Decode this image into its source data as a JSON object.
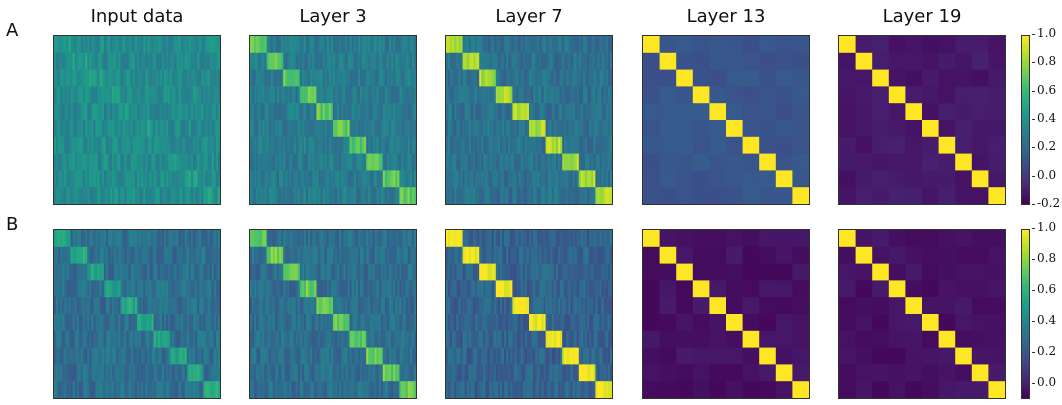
{
  "chart_data": {
    "type": "heatmap",
    "description": "Similarity matrices (10 block clusters) of input data and hidden-layer representations",
    "row_labels": [
      "A",
      "B"
    ],
    "column_titles": [
      "Input data",
      "Layer 3",
      "Layer 7",
      "Layer 13",
      "Layer 19"
    ],
    "colormap": "viridis",
    "n_blocks": 10,
    "rows": [
      {
        "label": "A",
        "colorbar": {
          "min": -0.2,
          "max": 1.0,
          "ticks": [
            "1.0",
            "0.8",
            "0.6",
            "0.4",
            "0.2",
            "0.0",
            "-0.2"
          ]
        },
        "panels": [
          {
            "title": "Input data",
            "diag": 0.45,
            "off": 0.38
          },
          {
            "title": "Layer 3",
            "diag": 0.7,
            "off": 0.3
          },
          {
            "title": "Layer 7",
            "diag": 0.85,
            "off": 0.25
          },
          {
            "title": "Layer 13",
            "diag": 1.0,
            "off": 0.12
          },
          {
            "title": "Layer 19",
            "diag": 1.0,
            "off": -0.12
          }
        ]
      },
      {
        "label": "B",
        "colorbar": {
          "min": -0.1,
          "max": 1.0,
          "ticks": [
            "1.0",
            "0.8",
            "0.6",
            "0.4",
            "0.2",
            "0.0"
          ]
        },
        "panels": [
          {
            "title": "Input data",
            "diag": 0.55,
            "off": 0.3
          },
          {
            "title": "Layer 3",
            "diag": 0.75,
            "off": 0.3
          },
          {
            "title": "Layer 7",
            "diag": 1.0,
            "off": 0.25
          },
          {
            "title": "Layer 13",
            "diag": 1.0,
            "off": -0.05
          },
          {
            "title": "Layer 19",
            "diag": 1.0,
            "off": -0.05
          }
        ]
      }
    ]
  }
}
